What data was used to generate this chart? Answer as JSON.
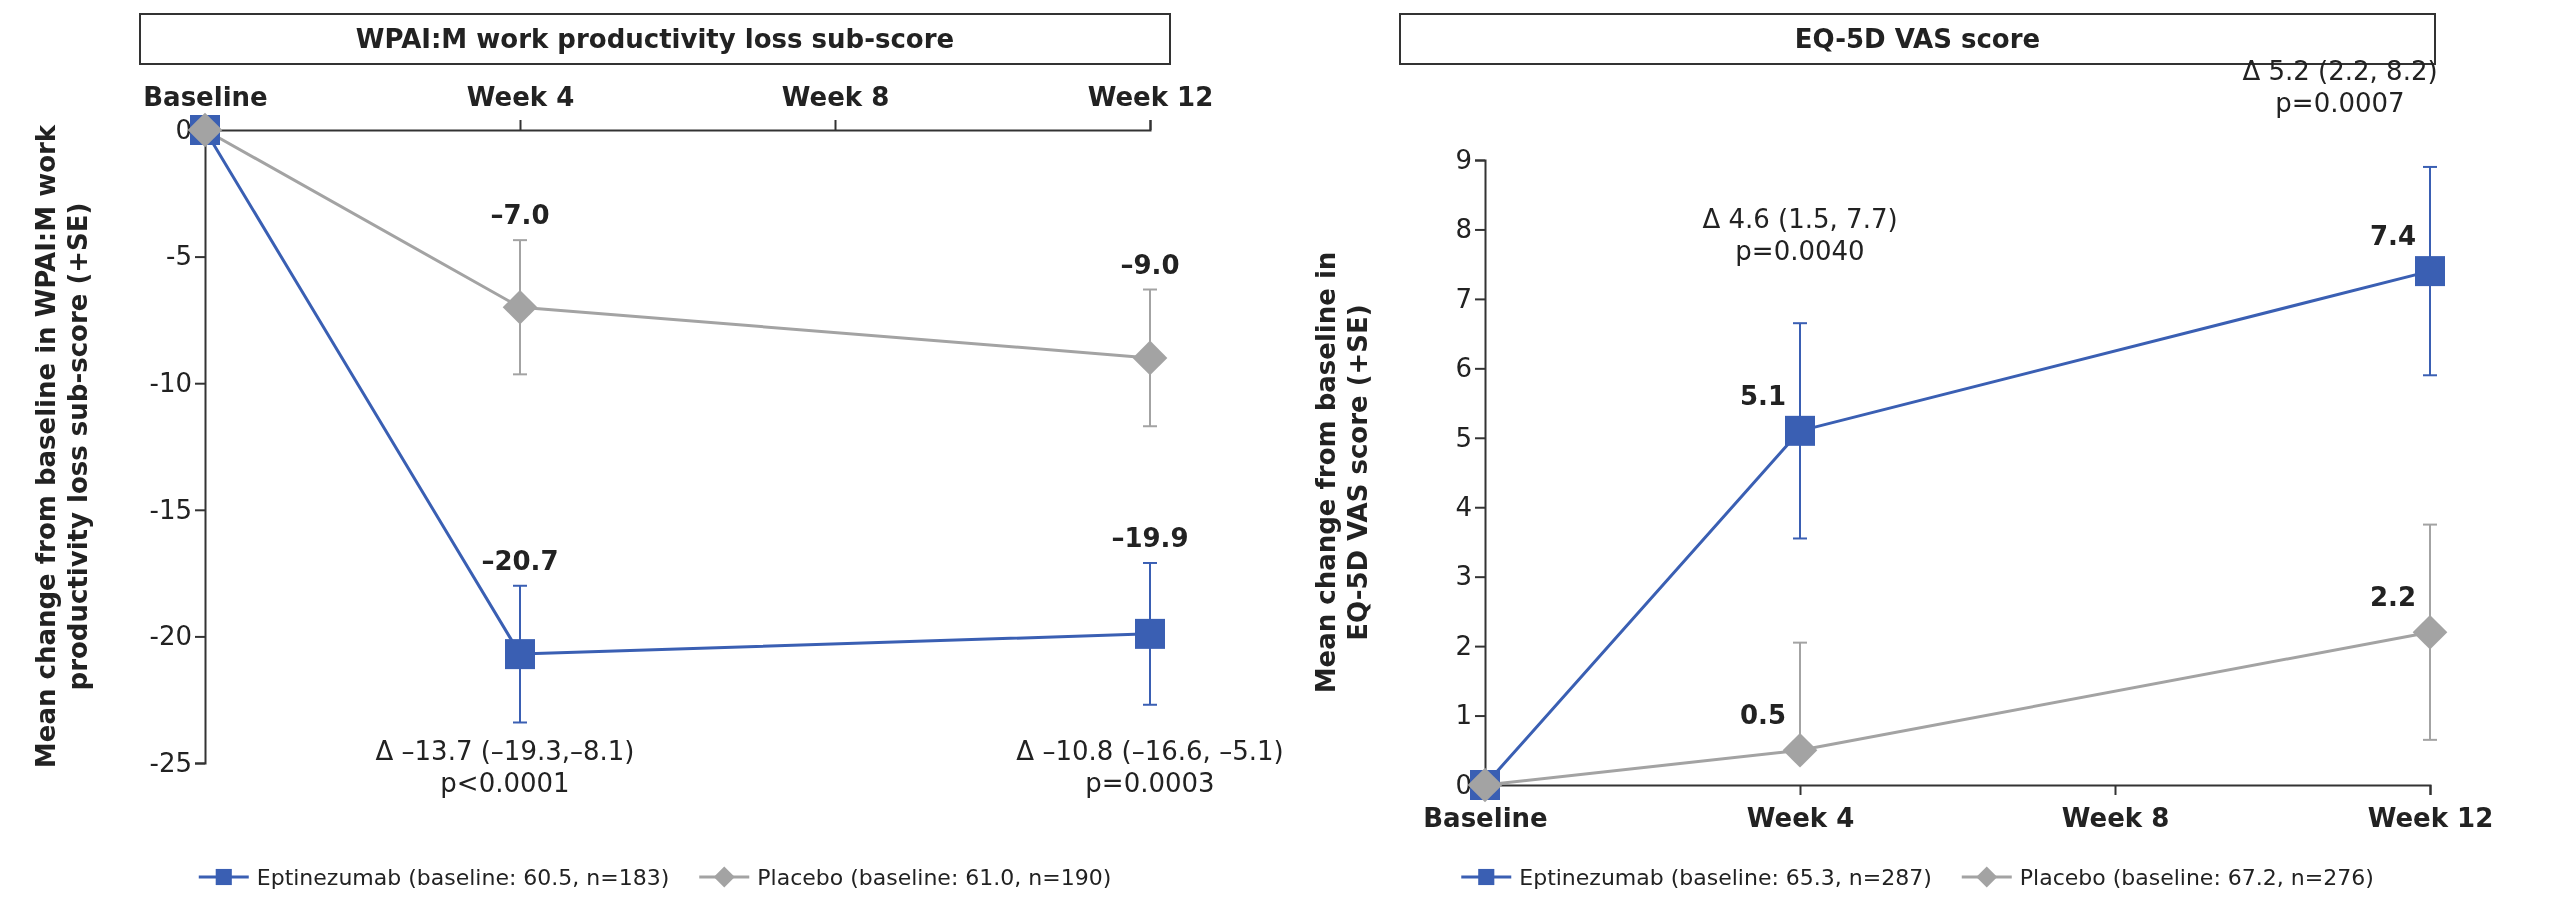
{
  "chart_data": [
    {
      "type": "line",
      "title": "WPAI:M work productivity loss sub-score",
      "ylabel": "Mean change from baseline in WPAI:M work productivity loss sub-score (+SE)",
      "categories": [
        "Baseline",
        "Week 4",
        "Week 8",
        "Week 12"
      ],
      "ylim": [
        -25,
        0
      ],
      "yticks": [
        0,
        -5,
        -10,
        -15,
        -20,
        -25
      ],
      "legend": "bottom",
      "series": [
        {
          "name": "Eptinezumab (baseline: 60.5, n=183)",
          "color": "#3a5fb3",
          "marker": "square",
          "values": [
            0,
            -20.7,
            null,
            -19.9
          ],
          "errors": [
            null,
            2.7,
            null,
            2.8
          ],
          "value_labels": [
            null,
            "–20.7",
            null,
            "–19.9"
          ]
        },
        {
          "name": "Placebo (baseline: 61.0, n=190)",
          "color": "#a3a3a3",
          "marker": "diamond",
          "values": [
            0,
            -7.0,
            null,
            -9.0
          ],
          "errors": [
            null,
            2.65,
            null,
            2.7
          ],
          "value_labels": [
            null,
            "–7.0",
            null,
            "–9.0"
          ]
        }
      ],
      "annotations": [
        "Δ –13.7 (–19.3,–8.1)\np<0.0001",
        "Δ –10.8 (–16.6, –5.1)\np=0.0003"
      ]
    },
    {
      "type": "line",
      "title": "EQ-5D VAS score",
      "ylabel": "Mean change from baseline in EQ-5D VAS score (+SE)",
      "categories": [
        "Baseline",
        "Week 4",
        "Week 8",
        "Week 12"
      ],
      "ylim": [
        0,
        9
      ],
      "yticks": [
        0,
        1,
        2,
        3,
        4,
        5,
        6,
        7,
        8,
        9
      ],
      "legend": "bottom",
      "series": [
        {
          "name": "Eptinezumab (baseline: 65.3, n=287)",
          "color": "#3a5fb3",
          "marker": "square",
          "values": [
            0,
            5.1,
            null,
            7.4
          ],
          "errors": [
            null,
            1.55,
            null,
            1.5
          ],
          "value_labels": [
            null,
            "5.1",
            null,
            "7.4"
          ]
        },
        {
          "name": "Placebo (baseline: 67.2, n=276)",
          "color": "#a3a3a3",
          "marker": "diamond",
          "values": [
            0,
            0.5,
            null,
            2.2
          ],
          "errors": [
            null,
            [
              0.5,
              2.05
            ],
            null,
            1.55
          ],
          "value_labels": [
            null,
            "0.5",
            null,
            "2.2"
          ]
        }
      ],
      "annotations": [
        "Δ 4.6 (1.5, 7.7)\np=0.0040",
        "Δ 5.2 (2.2, 8.2)\np=0.0007"
      ]
    }
  ]
}
